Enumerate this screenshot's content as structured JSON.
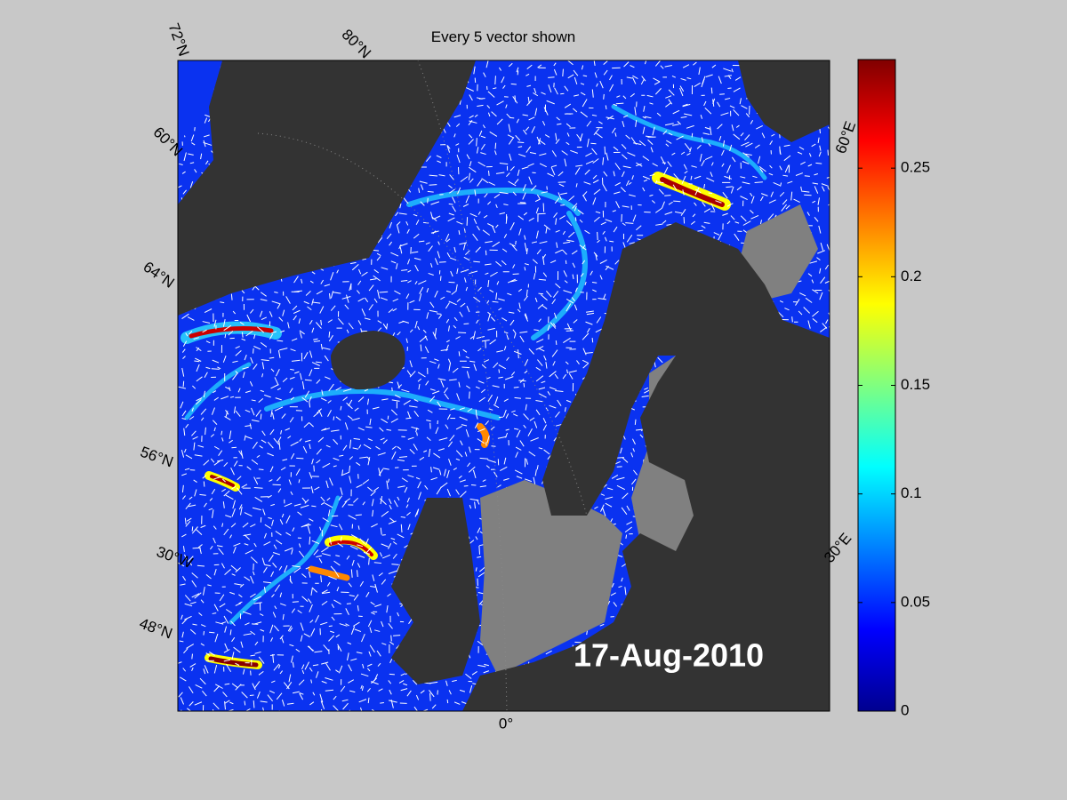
{
  "title": "Every 5 vector shown",
  "date": "17-Aug-2010",
  "map_labels": [
    "72°N",
    "80°N",
    "60°N",
    "64°N",
    "56°N",
    "30°W",
    "48°N",
    "0°",
    "30°E",
    "60°E"
  ],
  "colorbar": {
    "colormap": "jet",
    "lim": [
      0,
      0.3
    ],
    "ticks": [
      0,
      0.05,
      0.1,
      0.15,
      0.2,
      0.25
    ]
  }
}
